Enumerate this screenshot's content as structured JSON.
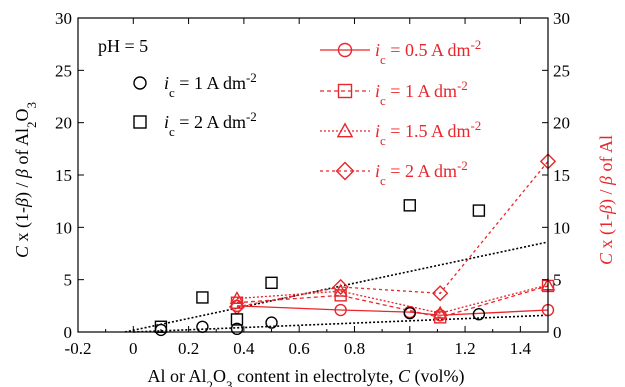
{
  "chart_data": {
    "type": "scatter",
    "annotation": "pH = 5",
    "xlabel": {
      "prefix": "Al or Al",
      "sub1": "2",
      "mid": "O",
      "sub2": "3",
      "suffix": " content in electrolyte, ",
      "var": "C",
      "unit": " (vol%)"
    },
    "ylabel_left": {
      "var": "C",
      "mid": " x  (1-",
      "beta": "β",
      "close": ") / ",
      "beta2": "β",
      "of": " of Al",
      "sub1": "2",
      "o": "O",
      "sub2": "3"
    },
    "ylabel_right": {
      "var": "C",
      "mid": " x  (1-",
      "beta": "β",
      "close": ") / ",
      "beta2": "β",
      "of": " of Al"
    },
    "xlim": [
      -0.2,
      1.5
    ],
    "ylim": [
      0,
      30
    ],
    "x_ticks": [
      "-0.2",
      "0",
      "0.2",
      "0.4",
      "0.6",
      "0.8",
      "1",
      "1.2",
      "1.4"
    ],
    "x_tick_values": [
      -0.2,
      0,
      0.2,
      0.4,
      0.6,
      0.8,
      1.0,
      1.2,
      1.4
    ],
    "y_ticks": [
      "0",
      "5",
      "10",
      "15",
      "20",
      "25",
      "30"
    ],
    "y_tick_values": [
      0,
      5,
      10,
      15,
      20,
      25,
      30
    ],
    "colors": {
      "black": "#000000",
      "red": "#e8262b"
    },
    "black_series": [
      {
        "label_i": "i",
        "label_sub": "c",
        "label_val": " = 1 A dm",
        "label_exp": "-2",
        "marker": "circle",
        "x": [
          0.1,
          0.25,
          0.375,
          0.5,
          1.0,
          1.25
        ],
        "y": [
          0.2,
          0.5,
          0.3,
          0.9,
          1.8,
          1.7
        ],
        "fit": [
          [
            0.0,
            0.0
          ],
          [
            1.5,
            1.6
          ]
        ]
      },
      {
        "label_i": "i",
        "label_sub": "c",
        "label_val": " = 2 A dm",
        "label_exp": "-2",
        "marker": "square",
        "x": [
          0.1,
          0.25,
          0.375,
          0.5,
          1.0,
          1.25
        ],
        "y": [
          0.5,
          3.3,
          1.2,
          4.7,
          12.1,
          11.6
        ],
        "fit": [
          [
            -0.03,
            0.0
          ],
          [
            1.5,
            8.6
          ]
        ]
      }
    ],
    "red_series": [
      {
        "label_i": "i",
        "label_sub": "c",
        "label_val": " = 0.5 A dm",
        "label_exp": "-2",
        "marker": "circle",
        "dash": "",
        "x": [
          0.375,
          0.75,
          1.0,
          1.11,
          1.5
        ],
        "y": [
          2.5,
          2.1,
          1.9,
          1.6,
          2.1
        ]
      },
      {
        "label_i": "i",
        "label_sub": "c",
        "label_val": " =    1 A dm",
        "label_exp": "-2",
        "marker": "square",
        "dash": "4,3",
        "x": [
          0.375,
          0.75,
          1.11,
          1.5
        ],
        "y": [
          2.8,
          3.5,
          1.4,
          4.4
        ]
      },
      {
        "label_i": "i",
        "label_sub": "c",
        "label_val": " = 1.5 A dm",
        "label_exp": "-2",
        "marker": "triangle",
        "dash": "2,2",
        "x": [
          0.375,
          0.75,
          1.11,
          1.5
        ],
        "y": [
          3.2,
          3.9,
          1.8,
          4.5
        ]
      },
      {
        "label_i": "i",
        "label_sub": "c",
        "label_val": " =    2 A dm",
        "label_exp": "-2",
        "marker": "diamond",
        "dash": "3,3",
        "x": [
          0.375,
          0.75,
          1.11,
          1.5
        ],
        "y": [
          2.4,
          4.3,
          3.7,
          16.3
        ]
      }
    ]
  }
}
